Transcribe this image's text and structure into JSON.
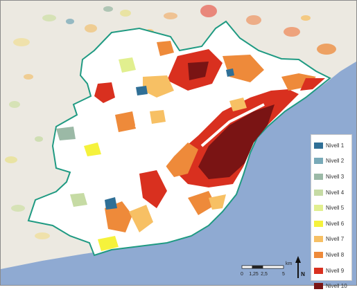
{
  "map": {
    "background_color": "#ece9e1",
    "sea_color": "#8faad2",
    "study_area_outline_color": "#1f9a82",
    "study_area_fill": "#ffffff"
  },
  "legend": {
    "items": [
      {
        "label": "Nivell 1",
        "color": "#2f6f96"
      },
      {
        "label": "Nivell 2",
        "color": "#79aab8"
      },
      {
        "label": "Nivell 3",
        "color": "#9bb9a6"
      },
      {
        "label": "Nivell 4",
        "color": "#c6dba4"
      },
      {
        "label": "Nivell 5",
        "color": "#e1ef8f"
      },
      {
        "label": "Nivell 6",
        "color": "#f5f23c"
      },
      {
        "label": "Nivell 7",
        "color": "#f7c064"
      },
      {
        "label": "Nivell 8",
        "color": "#ee8a3a"
      },
      {
        "label": "Nivell 9",
        "color": "#d9301f"
      },
      {
        "label": "Nivell 10",
        "color": "#7a1414"
      }
    ]
  },
  "scale_bar": {
    "ticks": [
      "0",
      "1,25",
      "2,5",
      "5"
    ],
    "unit": "km"
  },
  "north_arrow": {
    "label": "N"
  }
}
